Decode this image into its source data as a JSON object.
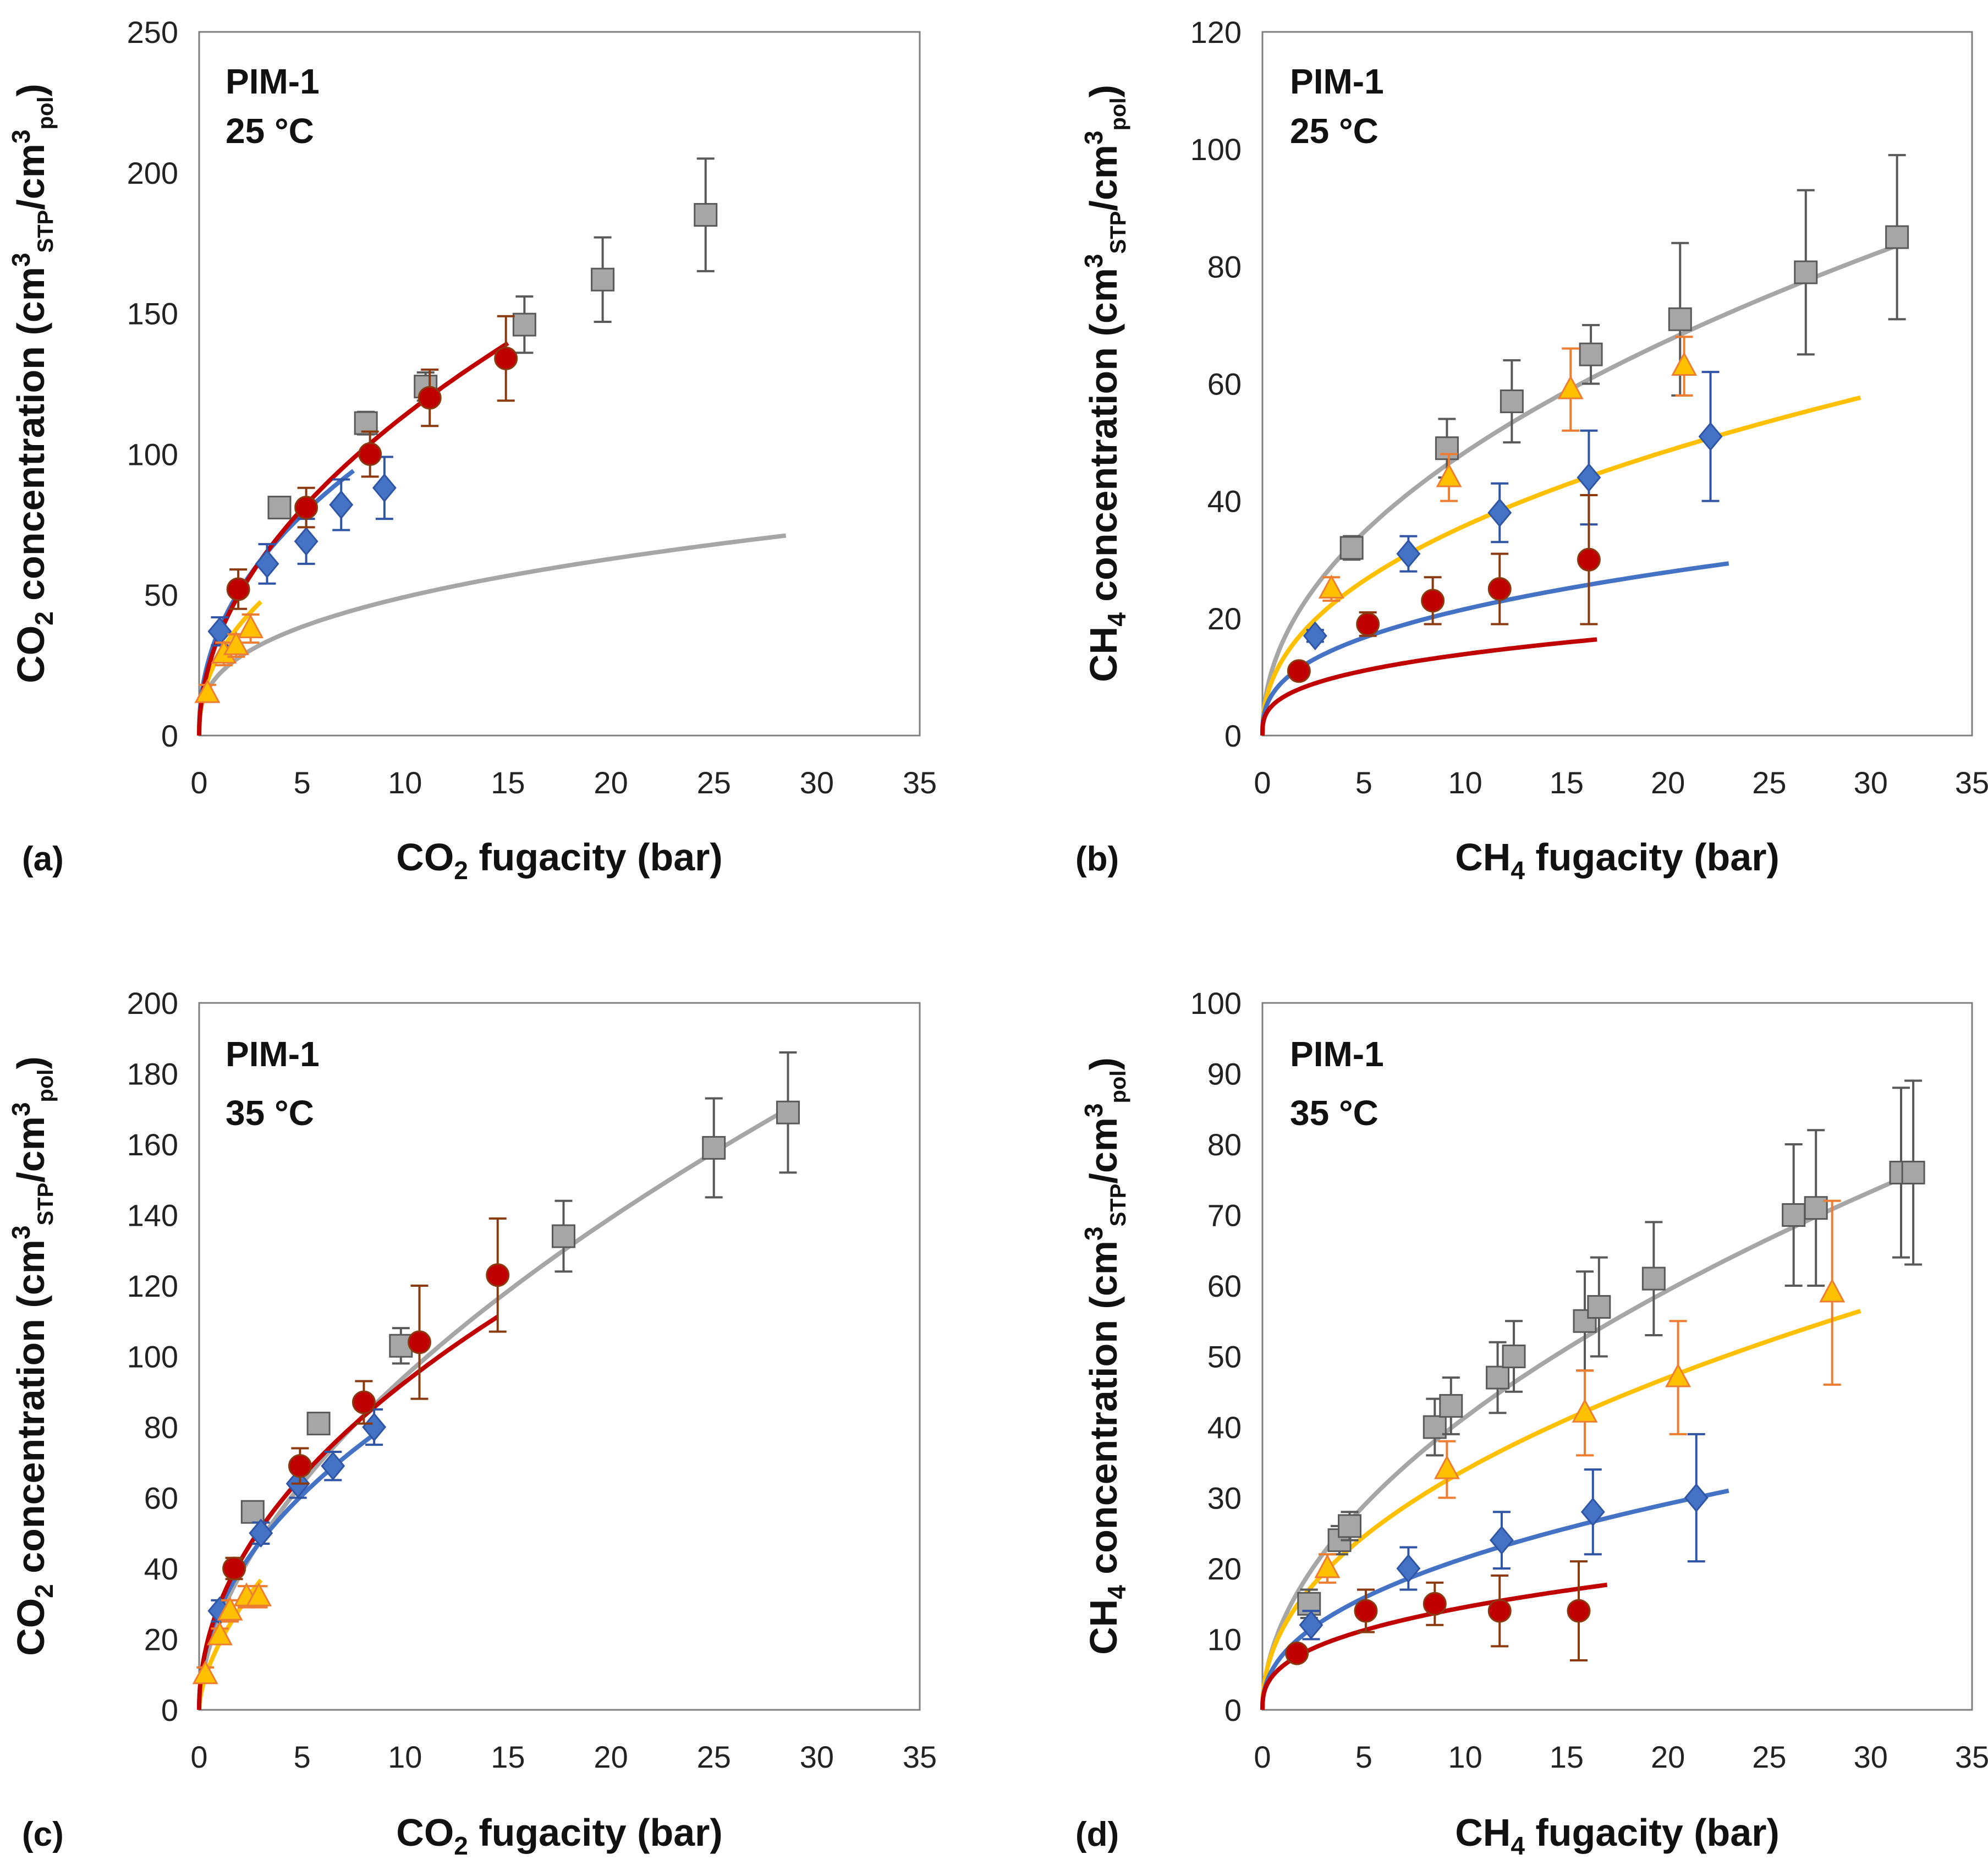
{
  "colors": {
    "gray": "#a6a6a6",
    "gray_err": "#595959",
    "red_line": "#c00000",
    "red_marker": "#c00000",
    "red_err": "#8b3a0f",
    "blue_line": "#4472c4",
    "blue_marker": "#4472c4",
    "blue_err": "#2f55a4",
    "yellow_line": "#ffc000",
    "yellow_marker": "#ffc000",
    "yellow_err": "#ed7d31"
  },
  "chart_data": [
    {
      "panel_id": "a",
      "panel_label": "(a)",
      "type": "scatter",
      "title_lines": [
        "PIM-1",
        "25 °C"
      ],
      "gas": "CO",
      "gas_sub": "2",
      "xlim": [
        0,
        35
      ],
      "xticks": [
        0,
        5,
        10,
        15,
        20,
        25,
        30,
        35
      ],
      "ylim": [
        0,
        250
      ],
      "yticks": [
        0,
        50,
        100,
        150,
        200,
        250
      ],
      "series": [
        {
          "name": "gray",
          "marker": "square",
          "fit": {
            "k": 22.0,
            "b": 0.35,
            "xmax": 28.5
          },
          "points": [
            [
              3.9,
              81,
              0
            ],
            [
              8.1,
              111,
              4
            ],
            [
              11.0,
              124,
              5
            ],
            [
              15.8,
              146,
              10
            ],
            [
              19.6,
              162,
              15
            ],
            [
              24.6,
              185,
              20
            ]
          ]
        },
        {
          "name": "blue",
          "marker": "diamond",
          "fit": {
            "k": 38.0,
            "b": 0.45,
            "xmax": 7.5
          },
          "points": [
            [
              1.0,
              37,
              5
            ],
            [
              3.3,
              61,
              7
            ],
            [
              5.2,
              69,
              8
            ],
            [
              6.9,
              82,
              9
            ],
            [
              9.0,
              88,
              11
            ]
          ]
        },
        {
          "name": "yellow",
          "marker": "triangle",
          "fit": {
            "k": 29.0,
            "b": 0.45,
            "xmax": 3.0
          },
          "points": [
            [
              0.4,
              15,
              3
            ],
            [
              1.2,
              29,
              4
            ],
            [
              1.8,
              32,
              4
            ],
            [
              2.5,
              38,
              5
            ]
          ]
        },
        {
          "name": "red",
          "marker": "circle",
          "fit": {
            "k": 36.0,
            "b": 0.5,
            "xmax": 15.0
          },
          "points": [
            [
              1.9,
              52,
              7
            ],
            [
              5.2,
              81,
              7
            ],
            [
              8.3,
              100,
              8
            ],
            [
              11.2,
              120,
              10
            ],
            [
              14.9,
              134,
              15
            ]
          ]
        }
      ]
    },
    {
      "panel_id": "b",
      "panel_label": "(b)",
      "type": "scatter",
      "title_lines": [
        "PIM-1",
        "25 °C"
      ],
      "gas": "CH",
      "gas_sub": "4",
      "xlim": [
        0,
        35
      ],
      "xticks": [
        0,
        5,
        10,
        15,
        20,
        25,
        30,
        35
      ],
      "ylim": [
        0,
        120
      ],
      "yticks": [
        0,
        20,
        40,
        60,
        80,
        100,
        120
      ],
      "series": [
        {
          "name": "gray",
          "marker": "square",
          "fit": {
            "k": 16.0,
            "b": 0.48,
            "xmax": 31.5
          },
          "points": [
            [
              4.4,
              32,
              2
            ],
            [
              9.1,
              49,
              5
            ],
            [
              12.3,
              57,
              7
            ],
            [
              16.2,
              65,
              5
            ],
            [
              20.6,
              71,
              13
            ],
            [
              26.8,
              79,
              14
            ],
            [
              31.3,
              85,
              14
            ]
          ]
        },
        {
          "name": "yellow",
          "marker": "triangle",
          "fit": {
            "k": 13.0,
            "b": 0.44,
            "xmax": 29.5
          },
          "points": [
            [
              3.4,
              25,
              2
            ],
            [
              9.2,
              44,
              4
            ],
            [
              15.2,
              59,
              7
            ],
            [
              20.8,
              63,
              5
            ]
          ]
        },
        {
          "name": "blue",
          "marker": "diamond",
          "fit": {
            "k": 9.2,
            "b": 0.37,
            "xmax": 23.0
          },
          "points": [
            [
              2.6,
              17,
              1
            ],
            [
              7.2,
              31,
              3
            ],
            [
              11.7,
              38,
              5
            ],
            [
              16.1,
              44,
              8
            ],
            [
              22.1,
              51,
              11
            ]
          ]
        },
        {
          "name": "red",
          "marker": "circle",
          "fit": {
            "k": 6.5,
            "b": 0.33,
            "xmax": 16.5
          },
          "points": [
            [
              1.8,
              11,
              1
            ],
            [
              5.2,
              19,
              2
            ],
            [
              8.4,
              23,
              4
            ],
            [
              11.7,
              25,
              6
            ],
            [
              16.1,
              30,
              11
            ]
          ]
        }
      ]
    },
    {
      "panel_id": "c",
      "panel_label": "(c)",
      "type": "scatter",
      "title_lines": [
        "PIM-1",
        "35 °C"
      ],
      "gas": "CO",
      "gas_sub": "2",
      "xlim": [
        0,
        35
      ],
      "xticks": [
        0,
        5,
        10,
        15,
        20,
        25,
        30,
        35
      ],
      "ylim": [
        0,
        200
      ],
      "yticks": [
        0,
        20,
        40,
        60,
        80,
        100,
        120,
        140,
        160,
        180,
        200
      ],
      "series": [
        {
          "name": "gray",
          "marker": "square",
          "fit": {
            "k": 26.0,
            "b": 0.56,
            "xmax": 29.0
          },
          "points": [
            [
              2.6,
              56,
              0
            ],
            [
              5.8,
              81,
              3
            ],
            [
              9.8,
              103,
              5
            ],
            [
              17.7,
              134,
              10
            ],
            [
              25.0,
              159,
              14
            ],
            [
              28.6,
              169,
              17
            ]
          ]
        },
        {
          "name": "blue",
          "marker": "diamond",
          "fit": {
            "k": 28.5,
            "b": 0.47,
            "xmax": 8.5
          },
          "points": [
            [
              1.0,
              28,
              3
            ],
            [
              3.0,
              50,
              3
            ],
            [
              4.8,
              64,
              4
            ],
            [
              6.5,
              69,
              4
            ],
            [
              8.5,
              80,
              5
            ]
          ]
        },
        {
          "name": "yellow",
          "marker": "triangle",
          "fit": {
            "k": 19.0,
            "b": 0.6,
            "xmax": 3.0
          },
          "points": [
            [
              0.3,
              10,
              2
            ],
            [
              1.0,
              21,
              2
            ],
            [
              1.5,
              28,
              3
            ],
            [
              2.3,
              32,
              3
            ],
            [
              2.9,
              32,
              3
            ]
          ]
        },
        {
          "name": "red",
          "marker": "circle",
          "fit": {
            "k": 30.0,
            "b": 0.49,
            "xmax": 14.5
          },
          "points": [
            [
              1.7,
              40,
              3
            ],
            [
              4.9,
              69,
              5
            ],
            [
              8.0,
              87,
              6
            ],
            [
              10.7,
              104,
              16
            ],
            [
              14.5,
              123,
              16
            ]
          ]
        }
      ]
    },
    {
      "panel_id": "d",
      "panel_label": "(d)",
      "type": "scatter",
      "title_lines": [
        "PIM-1",
        "35 °C"
      ],
      "gas": "CH",
      "gas_sub": "4",
      "xlim": [
        0,
        35
      ],
      "xticks": [
        0,
        5,
        10,
        15,
        20,
        25,
        30,
        35
      ],
      "ylim": [
        0,
        100
      ],
      "yticks": [
        0,
        10,
        20,
        30,
        40,
        50,
        60,
        70,
        80,
        90,
        100
      ],
      "series": [
        {
          "name": "gray",
          "marker": "square",
          "fit": {
            "k": 12.5,
            "b": 0.52,
            "xmax": 32.5
          },
          "points": [
            [
              2.3,
              15,
              2
            ],
            [
              3.8,
              24,
              2
            ],
            [
              4.3,
              26,
              2
            ],
            [
              8.5,
              40,
              4
            ],
            [
              9.3,
              43,
              4
            ],
            [
              11.6,
              47,
              5
            ],
            [
              12.4,
              50,
              5
            ],
            [
              15.9,
              55,
              7
            ],
            [
              16.6,
              57,
              7
            ],
            [
              19.3,
              61,
              8
            ],
            [
              26.2,
              70,
              10
            ],
            [
              27.3,
              71,
              11
            ],
            [
              31.5,
              76,
              12
            ],
            [
              32.1,
              76,
              13
            ]
          ]
        },
        {
          "name": "yellow",
          "marker": "triangle",
          "fit": {
            "k": 11.5,
            "b": 0.47,
            "xmax": 29.5
          },
          "points": [
            [
              3.2,
              20,
              2
            ],
            [
              9.1,
              34,
              4
            ],
            [
              15.9,
              42,
              6
            ],
            [
              20.5,
              47,
              8
            ],
            [
              28.1,
              59,
              13
            ]
          ]
        },
        {
          "name": "blue",
          "marker": "diamond",
          "fit": {
            "k": 7.8,
            "b": 0.44,
            "xmax": 23.0
          },
          "points": [
            [
              2.4,
              12,
              2
            ],
            [
              7.2,
              20,
              3
            ],
            [
              11.8,
              24,
              4
            ],
            [
              16.3,
              28,
              6
            ],
            [
              21.4,
              30,
              9
            ]
          ]
        },
        {
          "name": "red",
          "marker": "circle",
          "fit": {
            "k": 6.2,
            "b": 0.37,
            "xmax": 17.0
          },
          "points": [
            [
              1.7,
              8,
              1
            ],
            [
              5.1,
              14,
              3
            ],
            [
              8.5,
              15,
              3
            ],
            [
              11.7,
              14,
              5
            ],
            [
              15.6,
              14,
              7
            ]
          ]
        }
      ]
    }
  ]
}
